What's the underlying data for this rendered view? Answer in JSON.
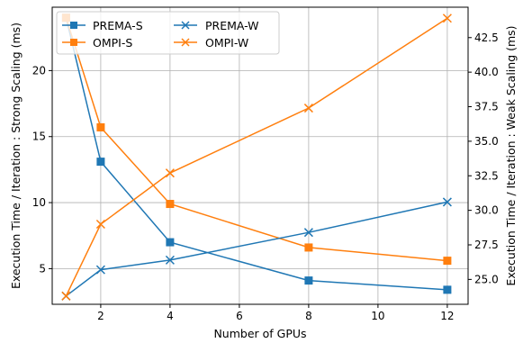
{
  "chart_data": {
    "type": "line",
    "title": "",
    "xlabel": "Number of GPUs",
    "ylabel_left": "Execution Time / Iteration : Strong Scaling (ms)",
    "ylabel_right": "Execution Time / Iteration : Weak Scaling (ms)",
    "x_ticks": [
      "2",
      "4",
      "6",
      "8",
      "10",
      "12"
    ],
    "y_left_ticks": [
      "5",
      "10",
      "15",
      "20"
    ],
    "y_right_ticks": [
      "25.0",
      "27.5",
      "30.0",
      "32.5",
      "35.0",
      "37.5",
      "40.0",
      "42.5"
    ],
    "xlim": [
      0.6,
      12.6
    ],
    "ylim_left": [
      2.3,
      24.8
    ],
    "ylim_right": [
      23.2,
      44.7
    ],
    "grid": true,
    "legend_position": "upper-left",
    "legend_columns": 2,
    "series": [
      {
        "name": "PREMA-S",
        "axis": "left",
        "marker": "square",
        "color": "#1f77b4",
        "x": [
          1,
          2,
          4,
          8,
          12
        ],
        "y": [
          24.0,
          13.1,
          7.0,
          4.1,
          3.4
        ]
      },
      {
        "name": "OMPI-S",
        "axis": "left",
        "marker": "square",
        "color": "#ff7f0e",
        "x": [
          1,
          2,
          4,
          8,
          12
        ],
        "y": [
          24.0,
          15.7,
          9.9,
          6.6,
          5.6
        ]
      },
      {
        "name": "PREMA-W",
        "axis": "right",
        "marker": "x",
        "color": "#1f77b4",
        "x": [
          1,
          2,
          4,
          8,
          12
        ],
        "y": [
          23.8,
          25.7,
          26.4,
          28.4,
          30.6
        ]
      },
      {
        "name": "OMPI-W",
        "axis": "right",
        "marker": "x",
        "color": "#ff7f0e",
        "x": [
          1,
          2,
          4,
          8,
          12
        ],
        "y": [
          23.8,
          29.0,
          32.7,
          37.4,
          43.9
        ]
      }
    ]
  }
}
